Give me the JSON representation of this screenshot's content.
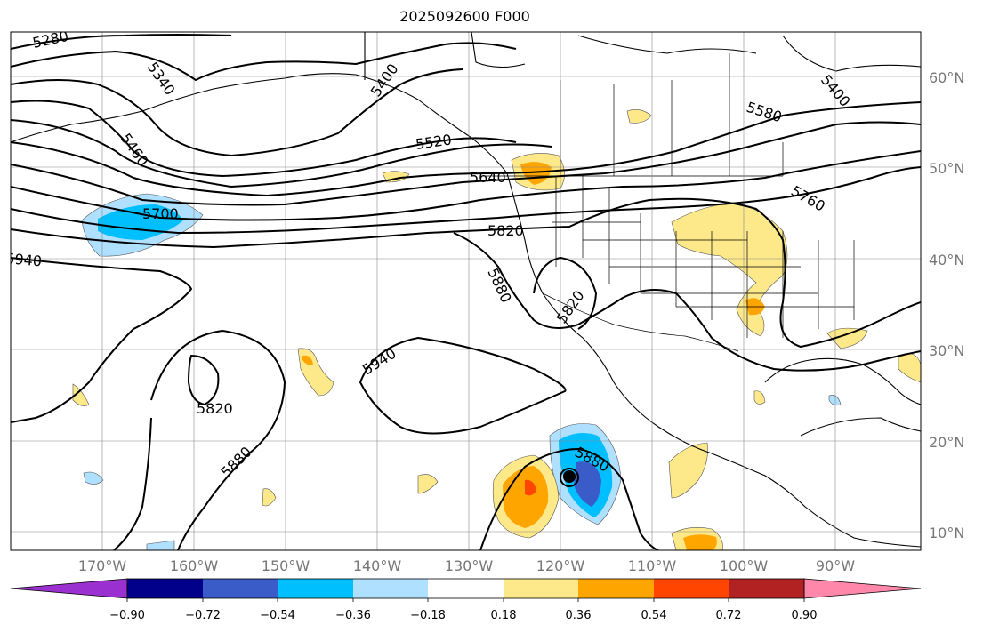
{
  "title": "2025092600 F000",
  "lat_labels": [
    "60°N",
    "50°N",
    "40°N",
    "30°N",
    "20°N",
    "10°N"
  ],
  "lon_labels": [
    "170°W",
    "160°W",
    "150°W",
    "140°W",
    "130°W",
    "120°W",
    "110°W",
    "100°W",
    "90°W"
  ],
  "contour_labels": [
    "5280",
    "5340",
    "5460",
    "5400",
    "5520",
    "5640",
    "5580",
    "5400",
    "5700",
    "5760",
    "5820",
    "5940",
    "5880",
    "5820",
    "5940",
    "5820",
    "5880",
    "5880"
  ],
  "colorbar": {
    "tick_labels": [
      "−0.90",
      "−0.72",
      "−0.54",
      "−0.36",
      "−0.18",
      "0.18",
      "0.36",
      "0.54",
      "0.72",
      "0.90"
    ],
    "colors": [
      "#9b30d0",
      "#00008b",
      "#3a5cc8",
      "#00bfff",
      "#b0e0ff",
      "#ffffff",
      "#fde98a",
      "#ffa500",
      "#ff4500",
      "#b22222",
      "#ff88aa"
    ]
  }
}
